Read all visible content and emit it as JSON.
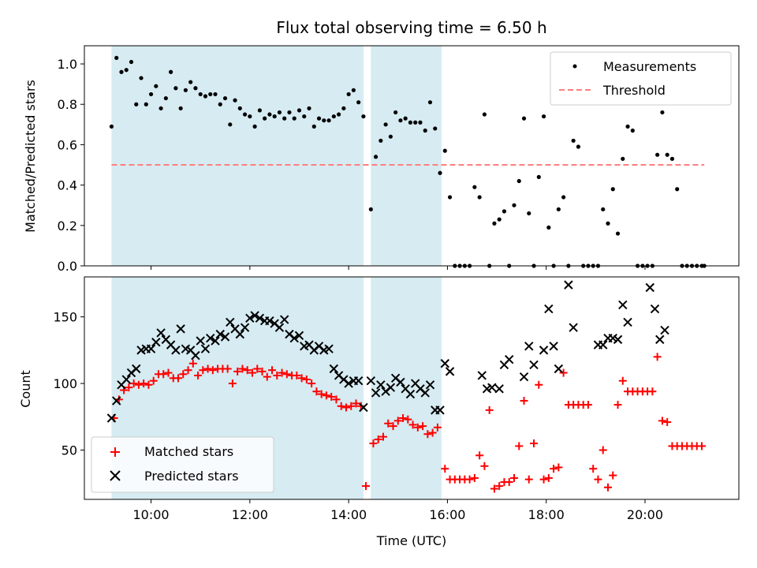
{
  "chart_data": [
    {
      "type": "scatter",
      "title": "Flux total observing time = 6.50 h",
      "xlabel": "",
      "ylabel": "Matched/Predicted stars",
      "xlim": [
        8.65,
        21.9
      ],
      "ylim": [
        0,
        1.09
      ],
      "yticks": [
        0.0,
        0.2,
        0.4,
        0.6,
        0.8,
        1.0
      ],
      "ytick_labels": [
        "0.0",
        "0.2",
        "0.4",
        "0.6",
        "0.8",
        "1.0"
      ],
      "xticks": [
        10,
        12,
        14,
        16,
        18,
        20
      ],
      "xtick_labels": [
        "",
        "",
        "",
        "",
        "",
        ""
      ],
      "shaded_intervals": [
        [
          9.2,
          14.3
        ],
        [
          14.45,
          15.88
        ]
      ],
      "shade_color": "#add8e6",
      "legend": {
        "placement": "upper right",
        "entries": [
          "Measurements",
          "Threshold"
        ]
      },
      "series": [
        {
          "name": "Measurements",
          "kind": "points",
          "color": "#000000",
          "x": [
            9.2,
            9.3,
            9.4,
            9.5,
            9.6,
            9.7,
            9.8,
            9.9,
            10.0,
            10.1,
            10.2,
            10.3,
            10.4,
            10.5,
            10.6,
            10.7,
            10.8,
            10.9,
            11.0,
            11.1,
            11.2,
            11.3,
            11.4,
            11.5,
            11.6,
            11.7,
            11.8,
            11.9,
            12.0,
            12.1,
            12.2,
            12.3,
            12.4,
            12.5,
            12.6,
            12.7,
            12.8,
            12.9,
            13.0,
            13.1,
            13.2,
            13.3,
            13.4,
            13.5,
            13.6,
            13.7,
            13.8,
            13.9,
            14.0,
            14.1,
            14.2,
            14.3,
            14.45,
            14.55,
            14.65,
            14.75,
            14.85,
            14.95,
            15.05,
            15.15,
            15.25,
            15.35,
            15.45,
            15.55,
            15.65,
            15.75,
            15.85,
            15.95,
            16.05,
            16.15,
            16.25,
            16.35,
            16.45,
            16.55,
            16.65,
            16.75,
            16.85,
            16.95,
            17.05,
            17.15,
            17.25,
            17.35,
            17.45,
            17.55,
            17.65,
            17.75,
            17.85,
            17.95,
            18.05,
            18.15,
            18.25,
            18.35,
            18.45,
            18.55,
            18.65,
            18.75,
            18.85,
            18.95,
            19.05,
            19.15,
            19.25,
            19.35,
            19.45,
            19.55,
            19.65,
            19.75,
            19.85,
            19.95,
            20.05,
            20.15,
            20.25,
            20.35,
            20.45,
            20.55,
            20.65,
            20.75,
            20.85,
            20.95,
            21.05,
            21.15,
            21.2
          ],
          "y": [
            0.69,
            1.03,
            0.96,
            0.97,
            1.01,
            0.8,
            0.93,
            0.8,
            0.85,
            0.89,
            0.78,
            0.83,
            0.96,
            0.88,
            0.78,
            0.87,
            0.91,
            0.88,
            0.85,
            0.84,
            0.85,
            0.85,
            0.8,
            0.83,
            0.7,
            0.82,
            0.78,
            0.75,
            0.74,
            0.69,
            0.77,
            0.73,
            0.75,
            0.74,
            0.76,
            0.73,
            0.76,
            0.73,
            0.77,
            0.74,
            0.78,
            0.69,
            0.73,
            0.72,
            0.72,
            0.74,
            0.75,
            0.78,
            0.85,
            0.87,
            0.81,
            0.74,
            0.28,
            0.54,
            0.62,
            0.7,
            0.64,
            0.76,
            0.72,
            0.73,
            0.71,
            0.71,
            0.71,
            0.67,
            0.81,
            0.68,
            0.46,
            0.57,
            0.34,
            0.0,
            0.0,
            0.0,
            0.0,
            0.39,
            0.34,
            0.75,
            0.0,
            0.21,
            0.23,
            0.27,
            0.0,
            0.3,
            0.42,
            0.73,
            0.26,
            0.0,
            0.44,
            0.74,
            0.19,
            0.0,
            0.28,
            0.34,
            0.0,
            0.62,
            0.59,
            0.0,
            0.0,
            0.0,
            0.0,
            0.28,
            0.21,
            0.38,
            0.16,
            0.53,
            0.69,
            0.67,
            0.0,
            0.0,
            0.0,
            0.0,
            0.55,
            0.76,
            0.55,
            0.53,
            0.38,
            0.0,
            0.0,
            0.0,
            0.0,
            0.0,
            0.0
          ]
        },
        {
          "name": "Threshold",
          "kind": "dashed-line",
          "color": "#ff7f7f",
          "x": [
            9.2,
            21.2
          ],
          "y": [
            0.5,
            0.5
          ]
        }
      ]
    },
    {
      "type": "scatter",
      "title": "",
      "xlabel": "Time (UTC)",
      "ylabel": "Count",
      "xlim": [
        8.65,
        21.9
      ],
      "ylim": [
        13,
        180
      ],
      "yticks": [
        50,
        100,
        150
      ],
      "ytick_labels": [
        "50",
        "100",
        "150"
      ],
      "xticks": [
        10,
        12,
        14,
        16,
        18,
        20
      ],
      "xtick_labels": [
        "10:00",
        "12:00",
        "14:00",
        "16:00",
        "18:00",
        "20:00"
      ],
      "shaded_intervals": [
        [
          9.2,
          14.3
        ],
        [
          14.45,
          15.88
        ]
      ],
      "shade_color": "#add8e6",
      "legend": {
        "placement": "lower left",
        "entries": [
          "Matched stars",
          "Predicted stars"
        ]
      },
      "series": [
        {
          "name": "Matched stars",
          "kind": "plus",
          "color": "#ff0000",
          "x": [
            9.25,
            9.35,
            9.45,
            9.55,
            9.65,
            9.75,
            9.85,
            9.95,
            10.05,
            10.15,
            10.25,
            10.35,
            10.45,
            10.55,
            10.65,
            10.75,
            10.85,
            10.95,
            11.05,
            11.15,
            11.25,
            11.35,
            11.45,
            11.55,
            11.65,
            11.75,
            11.85,
            11.95,
            12.05,
            12.15,
            12.25,
            12.35,
            12.45,
            12.55,
            12.65,
            12.75,
            12.85,
            12.95,
            13.05,
            13.15,
            13.25,
            13.35,
            13.45,
            13.55,
            13.65,
            13.75,
            13.85,
            13.95,
            14.05,
            14.15,
            14.25,
            14.35,
            14.5,
            14.6,
            14.7,
            14.8,
            14.9,
            15.0,
            15.1,
            15.2,
            15.3,
            15.4,
            15.5,
            15.6,
            15.7,
            15.8,
            15.95,
            16.05,
            16.15,
            16.25,
            16.35,
            16.45,
            16.55,
            16.65,
            16.75,
            16.85,
            16.95,
            17.05,
            17.15,
            17.25,
            17.35,
            17.45,
            17.55,
            17.65,
            17.75,
            17.85,
            17.95,
            18.05,
            18.15,
            18.25,
            18.35,
            18.45,
            18.55,
            18.65,
            18.75,
            18.85,
            18.95,
            19.05,
            19.15,
            19.25,
            19.35,
            19.45,
            19.55,
            19.65,
            19.75,
            19.85,
            19.95,
            20.05,
            20.15,
            20.25,
            20.35,
            20.45,
            20.55,
            20.65,
            20.75,
            20.85,
            20.95,
            21.05,
            21.15
          ],
          "y": [
            74,
            88,
            95,
            97,
            100,
            99,
            100,
            99,
            102,
            107,
            107,
            108,
            104,
            104,
            107,
            110,
            115,
            106,
            110,
            111,
            110,
            111,
            111,
            111,
            100,
            109,
            111,
            110,
            108,
            111,
            109,
            105,
            110,
            106,
            108,
            107,
            106,
            106,
            104,
            103,
            100,
            94,
            92,
            91,
            90,
            88,
            83,
            82,
            83,
            85,
            83,
            23,
            55,
            58,
            60,
            70,
            68,
            72,
            74,
            73,
            69,
            67,
            68,
            62,
            63,
            67,
            36,
            28,
            28,
            28,
            28,
            28,
            29,
            46,
            38,
            80,
            21,
            23,
            26,
            26,
            29,
            53,
            87,
            28,
            55,
            99,
            28,
            29,
            36,
            37,
            108,
            84,
            84,
            84,
            84,
            84,
            36,
            28,
            50,
            22,
            31,
            84,
            102,
            94,
            94,
            94,
            94,
            94,
            94,
            120,
            72,
            71,
            53,
            53,
            53,
            53,
            53,
            53,
            53
          ]
        },
        {
          "name": "Predicted stars",
          "kind": "x",
          "color": "#000000",
          "x": [
            9.2,
            9.3,
            9.4,
            9.5,
            9.6,
            9.7,
            9.8,
            9.9,
            10.0,
            10.1,
            10.2,
            10.3,
            10.4,
            10.5,
            10.6,
            10.7,
            10.8,
            10.9,
            11.0,
            11.1,
            11.2,
            11.3,
            11.4,
            11.5,
            11.6,
            11.7,
            11.8,
            11.9,
            12.0,
            12.1,
            12.2,
            12.3,
            12.4,
            12.5,
            12.6,
            12.7,
            12.8,
            12.9,
            13.0,
            13.1,
            13.2,
            13.3,
            13.4,
            13.5,
            13.6,
            13.7,
            13.8,
            13.9,
            14.0,
            14.1,
            14.2,
            14.3,
            14.45,
            14.55,
            14.65,
            14.75,
            14.85,
            14.95,
            15.05,
            15.15,
            15.25,
            15.35,
            15.45,
            15.55,
            15.65,
            15.75,
            15.85,
            15.95,
            16.05,
            16.7,
            16.8,
            16.9,
            17.05,
            17.15,
            17.25,
            17.55,
            17.65,
            17.75,
            17.95,
            18.05,
            18.15,
            18.25,
            18.45,
            18.55,
            19.05,
            19.15,
            19.25,
            19.35,
            19.45,
            19.55,
            19.65,
            20.1,
            20.2,
            20.3,
            20.4
          ],
          "y": [
            74,
            87,
            99,
            103,
            108,
            111,
            125,
            126,
            126,
            131,
            138,
            133,
            129,
            125,
            141,
            126,
            125,
            121,
            132,
            126,
            134,
            132,
            137,
            135,
            146,
            141,
            137,
            142,
            149,
            151,
            149,
            147,
            147,
            145,
            142,
            148,
            137,
            134,
            136,
            128,
            129,
            125,
            128,
            125,
            126,
            111,
            106,
            103,
            100,
            102,
            102,
            82,
            102,
            93,
            99,
            94,
            97,
            104,
            101,
            96,
            92,
            100,
            96,
            93,
            99,
            80,
            80,
            115,
            109,
            106,
            96,
            97,
            96,
            114,
            118,
            105,
            128,
            114,
            125,
            156,
            128,
            111,
            174,
            142,
            129,
            129,
            134,
            134,
            133,
            159,
            146,
            172,
            156,
            133,
            140
          ]
        }
      ]
    }
  ]
}
